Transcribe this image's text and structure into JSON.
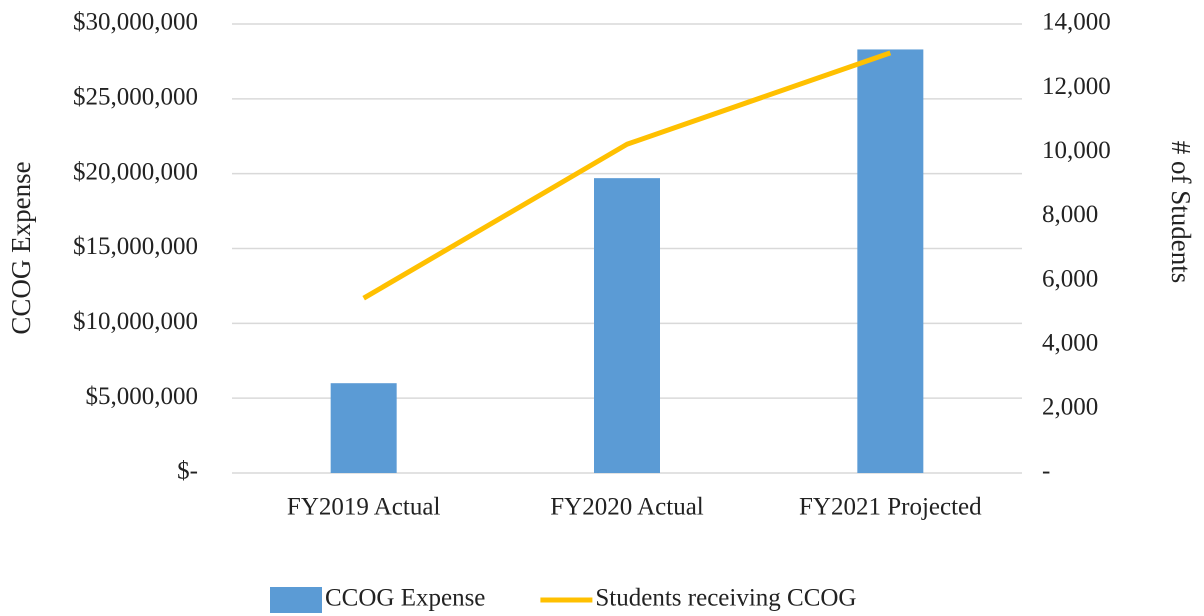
{
  "chart_data": {
    "type": "bar",
    "categories": [
      "FY2019 Actual",
      "FY2020 Actual",
      "FY2021 Projected"
    ],
    "y_axis_label": "CCOG Expense",
    "y2_axis_label": "# of Students",
    "series": [
      {
        "name": "CCOG Expense",
        "type": "bar",
        "color": "#5b9bd5",
        "values": [
          6000000,
          19700000,
          28300000
        ]
      },
      {
        "name": "Students receiving CCOG",
        "type": "line",
        "axis": "y2",
        "color": "#ffc000",
        "values": [
          5450,
          10250,
          13100
        ]
      }
    ],
    "ylim": [
      0,
      30000000
    ],
    "yticks": [
      {
        "value": 0,
        "label": "$-"
      },
      {
        "value": 5000000,
        "label": "$5,000,000"
      },
      {
        "value": 10000000,
        "label": "$10,000,000"
      },
      {
        "value": 15000000,
        "label": "$15,000,000"
      },
      {
        "value": 20000000,
        "label": "$20,000,000"
      },
      {
        "value": 25000000,
        "label": "$25,000,000"
      },
      {
        "value": 30000000,
        "label": "$30,000,000"
      }
    ],
    "y2lim": [
      0,
      14000
    ],
    "y2ticks": [
      {
        "value": 0,
        "label": "-"
      },
      {
        "value": 2000,
        "label": "2,000"
      },
      {
        "value": 4000,
        "label": "4,000"
      },
      {
        "value": 6000,
        "label": "6,000"
      },
      {
        "value": 8000,
        "label": "8,000"
      },
      {
        "value": 10000,
        "label": "10,000"
      },
      {
        "value": 12000,
        "label": "12,000"
      },
      {
        "value": 14000,
        "label": "14,000"
      }
    ],
    "grid": true,
    "legend": "bottom"
  }
}
